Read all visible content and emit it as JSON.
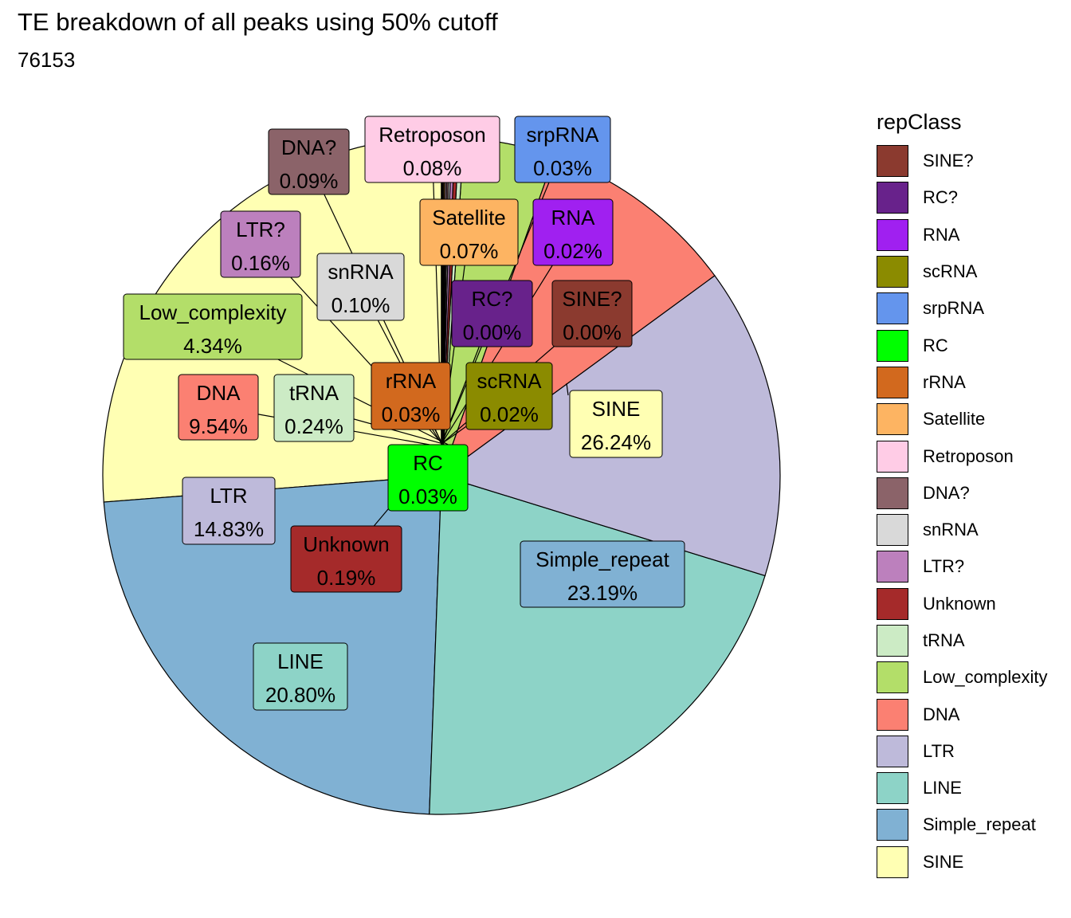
{
  "chart_data": {
    "type": "pie",
    "title": "TE breakdown of all peaks using 50% cutoff",
    "subtitle": "76153",
    "legend": {
      "title": "repClass",
      "placement": "right",
      "items": [
        "SINE?",
        "RC?",
        "RNA",
        "scRNA",
        "srpRNA",
        "RC",
        "rRNA",
        "Satellite",
        "Retroposon",
        "DNA?",
        "snRNA",
        "LTR?",
        "Unknown",
        "tRNA",
        "Low_complexity",
        "DNA",
        "LTR",
        "LINE",
        "Simple_repeat",
        "SINE"
      ]
    },
    "slices": [
      {
        "name": "SINE",
        "value": 26.24,
        "label": "26.24%",
        "color": "#FFFFB3"
      },
      {
        "name": "Simple_repeat",
        "value": 23.19,
        "label": "23.19%",
        "color": "#80B1D3"
      },
      {
        "name": "LINE",
        "value": 20.8,
        "label": "20.80%",
        "color": "#8DD3C7"
      },
      {
        "name": "LTR",
        "value": 14.83,
        "label": "14.83%",
        "color": "#BEBADA"
      },
      {
        "name": "DNA",
        "value": 9.54,
        "label": "9.54%",
        "color": "#FB8072"
      },
      {
        "name": "Low_complexity",
        "value": 4.34,
        "label": "4.34%",
        "color": "#B3DE69"
      },
      {
        "name": "tRNA",
        "value": 0.24,
        "label": "0.24%",
        "color": "#CCEBC5"
      },
      {
        "name": "Unknown",
        "value": 0.19,
        "label": "0.19%",
        "color": "#A52A2A"
      },
      {
        "name": "LTR?",
        "value": 0.16,
        "label": "0.16%",
        "color": "#BC80BD"
      },
      {
        "name": "snRNA",
        "value": 0.1,
        "label": "0.10%",
        "color": "#D9D9D9"
      },
      {
        "name": "DNA?",
        "value": 0.09,
        "label": "0.09%",
        "color": "#8B6369"
      },
      {
        "name": "Retroposon",
        "value": 0.08,
        "label": "0.08%",
        "color": "#FFCCE6"
      },
      {
        "name": "Satellite",
        "value": 0.07,
        "label": "0.07%",
        "color": "#FDB462"
      },
      {
        "name": "rRNA",
        "value": 0.03,
        "label": "0.03%",
        "color": "#D2691E"
      },
      {
        "name": "RC",
        "value": 0.03,
        "label": "0.03%",
        "color": "#00FF00"
      },
      {
        "name": "srpRNA",
        "value": 0.03,
        "label": "0.03%",
        "color": "#6495ED"
      },
      {
        "name": "scRNA",
        "value": 0.02,
        "label": "0.02%",
        "color": "#8B8B00"
      },
      {
        "name": "RNA",
        "value": 0.02,
        "label": "0.02%",
        "color": "#A020F0"
      },
      {
        "name": "RC?",
        "value": 0.0,
        "label": "0.00%",
        "color": "#68228B"
      },
      {
        "name": "SINE?",
        "value": 0.0,
        "label": "0.00%",
        "color": "#8B3A2F"
      }
    ]
  }
}
